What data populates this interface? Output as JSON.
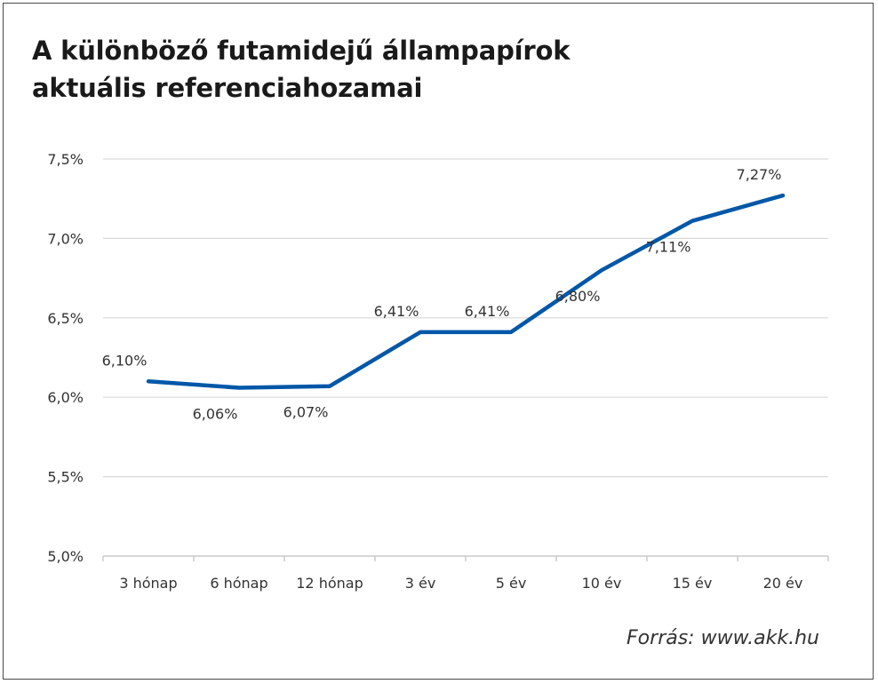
{
  "chart_data": {
    "type": "line",
    "title_lines": [
      "A különböző futamidejű állampapírok",
      "aktuális referenciahozamai"
    ],
    "categories": [
      "3 hónap",
      "6 hónap",
      "12 hónap",
      "3 év",
      "5 év",
      "10 év",
      "15 év",
      "20 év"
    ],
    "series": [
      {
        "values": [
          6.1,
          6.06,
          6.07,
          6.41,
          6.41,
          6.8,
          7.11,
          7.27
        ],
        "data_labels": [
          "6,10%",
          "6,06%",
          "6,07%",
          "6,41%",
          "6,41%",
          "6,80%",
          "7,11%",
          "7,27%"
        ],
        "color": "#0057a8"
      }
    ],
    "ylim": [
      5.0,
      7.5
    ],
    "y_ticks": [
      5.0,
      5.5,
      6.0,
      6.5,
      7.0,
      7.5
    ],
    "y_tick_labels": [
      "5,0%",
      "5,5%",
      "6,0%",
      "6,5%",
      "7,0%",
      "7,5%"
    ],
    "xlabel": "",
    "ylabel": "",
    "grid": true,
    "legend": "none",
    "gridline_color": "#d9d9d9",
    "source": "Forrás: www.akk.hu"
  }
}
